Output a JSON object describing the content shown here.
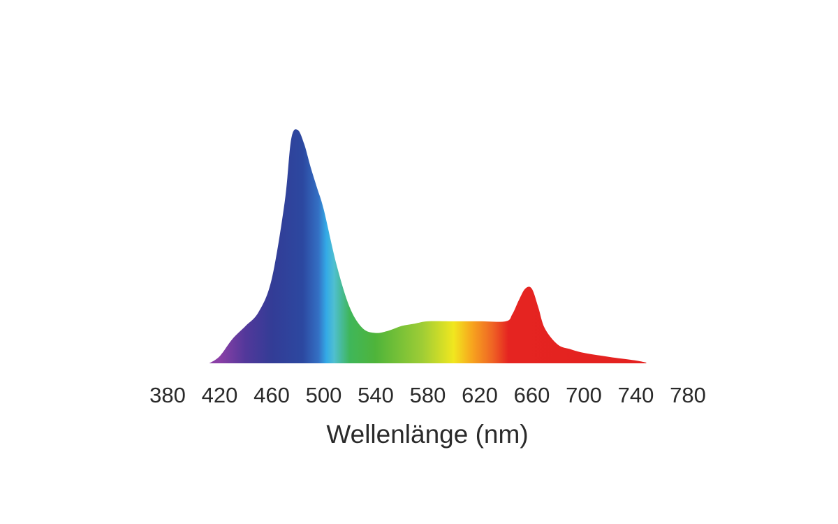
{
  "chart_data": {
    "type": "area",
    "x_label": "Wellenlänge (nm)",
    "x": [
      412,
      420,
      430,
      440,
      450,
      460,
      470,
      475,
      480,
      485,
      490,
      495,
      500,
      510,
      520,
      530,
      540,
      550,
      560,
      570,
      580,
      600,
      620,
      640,
      645,
      650,
      655,
      660,
      665,
      670,
      680,
      690,
      700,
      720,
      740,
      748
    ],
    "values": [
      0,
      3,
      10.5,
      16,
      22,
      36,
      69,
      96,
      100,
      94,
      84,
      75,
      66,
      42,
      24,
      15,
      13,
      14,
      16,
      17,
      18,
      18,
      18,
      18,
      21,
      27,
      32,
      32,
      24,
      15,
      8,
      6,
      4.5,
      2.7,
      1.2,
      0.3
    ],
    "xlim": [
      380,
      780
    ],
    "xticks": [
      380,
      420,
      460,
      500,
      540,
      580,
      620,
      660,
      700,
      740,
      780
    ]
  }
}
